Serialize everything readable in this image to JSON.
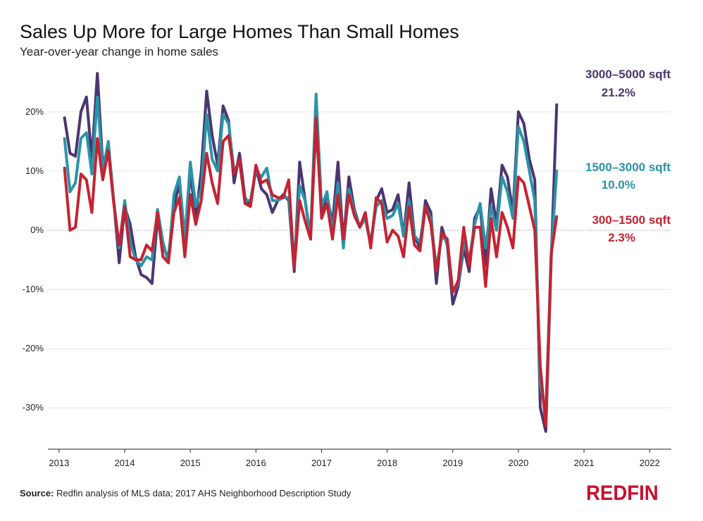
{
  "chart_data": {
    "type": "line",
    "title": "Sales Up More for Large Homes Than Small Homes",
    "subtitle": "Year-over-year change in home sales",
    "xlabel": "",
    "ylabel": "",
    "x_ticks": [
      "2013",
      "2014",
      "2015",
      "2016",
      "2017",
      "2018",
      "2019",
      "2020",
      "2021",
      "2022"
    ],
    "y_ticks": [
      20,
      10,
      0,
      -10,
      -20,
      -30
    ],
    "y_tick_labels": [
      "20%",
      "10%",
      "0%",
      "-10%",
      "-20%",
      "-30%"
    ],
    "ylim": [
      -37,
      27
    ],
    "xlim": [
      2012.83,
      2022.33
    ],
    "zero_line": true,
    "grid": "horizontal",
    "series": [
      {
        "name": "3000–5000 sqft",
        "end_value_label": "21.2%",
        "color": "#4a3570",
        "start": "2013-02",
        "values": [
          19,
          13,
          12.5,
          20,
          22.5,
          12,
          26.5,
          11,
          14,
          5,
          -5.5,
          4,
          1,
          -4.5,
          -7.5,
          -8,
          -9,
          2,
          -3,
          -4.5,
          4,
          8,
          -3,
          10,
          2,
          10,
          23.5,
          16,
          11,
          21,
          18.5,
          8,
          13,
          5.5,
          4,
          10.5,
          7,
          6,
          3,
          5,
          6,
          5,
          -7,
          11.5,
          5,
          -1.5,
          18,
          3,
          6,
          1,
          11.5,
          -2,
          9,
          3.5,
          0.5,
          2,
          -2.5,
          5,
          7,
          3,
          3.5,
          6,
          -1,
          8,
          -1,
          -3,
          5,
          3,
          -9,
          0.5,
          -2.5,
          -12.5,
          -9.5,
          -3,
          -7,
          2,
          4,
          -6,
          7,
          1,
          11,
          9,
          3,
          20,
          18,
          12,
          8.5,
          -30,
          -34,
          -5,
          21.2
        ]
      },
      {
        "name": "1500–3000 sqft",
        "end_value_label": "10.0%",
        "color": "#2a93a8",
        "start": "2013-02",
        "values": [
          15.5,
          6.5,
          8,
          15.5,
          16.5,
          9.5,
          22.5,
          10,
          15,
          5,
          -3,
          5,
          -2,
          -5,
          -6,
          -4.5,
          -5,
          3.5,
          -2,
          -5.5,
          6,
          9,
          -1.5,
          11.5,
          4,
          7,
          19.5,
          12,
          10,
          19.5,
          18,
          10,
          11.5,
          5,
          5,
          10,
          9,
          10.5,
          5,
          5,
          5.5,
          5.5,
          -6,
          7.5,
          5,
          -1,
          23,
          4,
          6.5,
          -0.5,
          8,
          -3,
          7,
          3,
          0.5,
          2,
          -2,
          4,
          5,
          2,
          2.5,
          4.5,
          -1,
          5,
          -1,
          -2,
          4,
          2,
          -6.5,
          -1,
          -2,
          -10.5,
          -9,
          -2,
          -5,
          1,
          4.5,
          -3,
          4,
          0,
          9,
          6.5,
          2,
          17.5,
          15,
          10,
          5,
          -26,
          -31,
          -4,
          10
        ]
      },
      {
        "name": "300–1500 sqft",
        "end_value_label": "2.3%",
        "color": "#c42331",
        "start": "2013-02",
        "values": [
          10.5,
          0,
          0.5,
          9.5,
          8.5,
          3,
          15.5,
          8.5,
          13.5,
          4.5,
          -2.5,
          4,
          -4.5,
          -5,
          -5,
          -2.5,
          -3.5,
          3,
          -4.5,
          -5.5,
          3,
          5.5,
          -4.5,
          6,
          1,
          5,
          13,
          8,
          4.5,
          15,
          16,
          9.5,
          12,
          4.5,
          4,
          11,
          8,
          8.5,
          6,
          5.5,
          5.5,
          8.5,
          -6.5,
          5,
          1.5,
          -1.5,
          19,
          2,
          4.5,
          -1.5,
          6,
          -1.5,
          6,
          2.5,
          0.5,
          3,
          -3,
          5.5,
          4.5,
          -2,
          0,
          -1,
          -4.5,
          4,
          -2.5,
          -3.5,
          4,
          1,
          -7,
          -0.5,
          -1.5,
          -10.5,
          -8.5,
          0.5,
          -6,
          0.5,
          0.5,
          -9.5,
          2,
          -4.5,
          3,
          0.5,
          -3,
          9,
          8,
          4,
          0,
          -23,
          -33,
          -4,
          2.3
        ]
      }
    ]
  },
  "footer": {
    "source_label": "Source:",
    "source_text": " Redfin analysis of MLS data; 2017 AHS Neighborhood Description Study"
  },
  "brand": {
    "logo_text": "REDFIN",
    "color": "#c8102e"
  }
}
